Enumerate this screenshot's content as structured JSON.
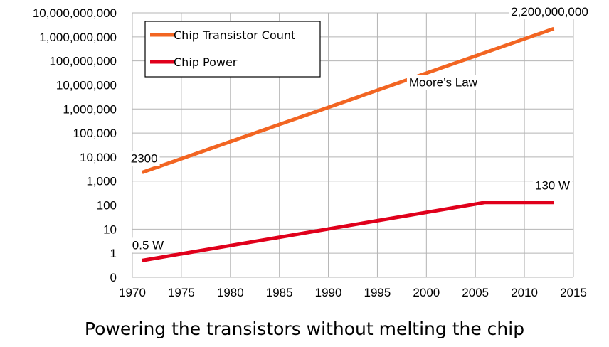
{
  "caption": "Powering the transistors without melting the chip",
  "chart_data": {
    "type": "line",
    "y_scale": "log",
    "xlim": [
      1970,
      2015
    ],
    "x_ticks": [
      1970,
      1975,
      1980,
      1985,
      1990,
      1995,
      2000,
      2005,
      2010,
      2015
    ],
    "y_ticks": [
      {
        "value": 0.1,
        "label": "0"
      },
      {
        "value": 1,
        "label": "1"
      },
      {
        "value": 10,
        "label": "10"
      },
      {
        "value": 100,
        "label": "100"
      },
      {
        "value": 1000,
        "label": "1,000"
      },
      {
        "value": 10000,
        "label": "10,000"
      },
      {
        "value": 100000,
        "label": "100,000"
      },
      {
        "value": 1000000,
        "label": "1,000,000"
      },
      {
        "value": 10000000,
        "label": "10,000,000"
      },
      {
        "value": 100000000,
        "label": "100,000,000"
      },
      {
        "value": 1000000000,
        "label": "1,000,000,000"
      },
      {
        "value": 10000000000,
        "label": "10,000,000,000"
      }
    ],
    "grid": true,
    "legend": "top-left",
    "series": [
      {
        "name": "Chip Transistor Count",
        "color": "#f26522",
        "points": [
          [
            1971,
            2300
          ],
          [
            2013,
            2200000000
          ]
        ]
      },
      {
        "name": "Chip Power",
        "color": "#e0001b",
        "points": [
          [
            1971,
            0.5
          ],
          [
            2006,
            130
          ],
          [
            2013,
            130
          ]
        ]
      }
    ],
    "annotations": [
      {
        "text": "2300",
        "x": 1971,
        "y": 2300,
        "anchor": "above-left"
      },
      {
        "text": "2,200,000,000",
        "x": 2013,
        "y": 2200000000,
        "anchor": "above"
      },
      {
        "text": "Moore’s Law",
        "x": 1997.5,
        "y": 13000000,
        "anchor": "inline"
      },
      {
        "text": "0.5 W",
        "x": 1971,
        "y": 0.5,
        "anchor": "above"
      },
      {
        "text": "130 W",
        "x": 2013,
        "y": 130,
        "anchor": "above"
      }
    ]
  }
}
